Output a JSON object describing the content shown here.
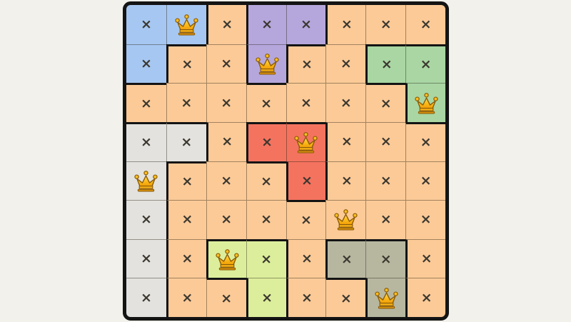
{
  "page": {
    "background_color": "#f2f1ec"
  },
  "board": {
    "rows": 8,
    "cols": 8,
    "outer_border_color": "#141414",
    "thick_border_color": "#141414",
    "thin_border_color": "rgba(30,22,10,0.4)",
    "region_rows": [
      "BBOPPOOO",
      "BOOPOOGG",
      "OOOOOOOG",
      "EEORROOO",
      "EOOOROOO",
      "EOOOOOOO",
      "EOYYOLLO",
      "EOOYOOLO"
    ],
    "region_colors": {
      "B": "#a6c7f1",
      "P": "#b5a7dc",
      "G": "#a9d6a3",
      "R": "#f4735f",
      "E": "#e3e2de",
      "Y": "#dcee9b",
      "L": "#b7b7a0",
      "O": "#fbca97"
    },
    "region_names": {
      "B": "blue",
      "P": "purple",
      "G": "green",
      "R": "red",
      "E": "light-gray",
      "Y": "yellow-green",
      "L": "olive-gray",
      "O": "orange"
    },
    "queens": [
      [
        0,
        1
      ],
      [
        1,
        3
      ],
      [
        2,
        7
      ],
      [
        3,
        4
      ],
      [
        4,
        0
      ],
      [
        5,
        5
      ],
      [
        6,
        2
      ],
      [
        7,
        6
      ]
    ],
    "queen_icon": "gold-crown-icon",
    "crown_colors": {
      "gradient_top": "#ffe06a",
      "gradient_mid": "#fcbf1d",
      "gradient_bottom": "#ef9b05",
      "outline": "#8a5a08",
      "base_band": "#f5ae14",
      "bottom_rim": "#d8900d"
    },
    "mark_symbol": "×",
    "mark_color": "#3b372f"
  }
}
